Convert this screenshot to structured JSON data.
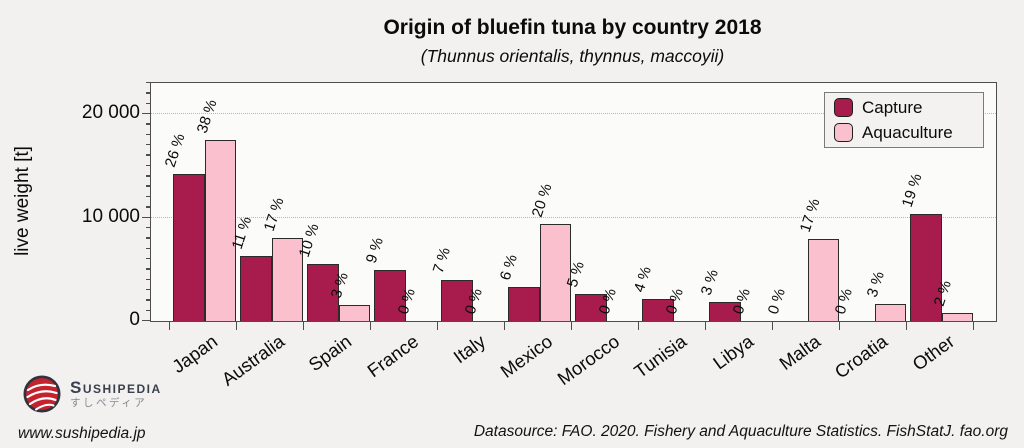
{
  "header": {
    "title": "Origin of bluefin tuna by country 2018",
    "subtitle": "(Thunnus orientalis, thynnus, maccoyii)"
  },
  "chart_data": {
    "type": "bar",
    "title": "Origin of bluefin tuna by country 2018",
    "subtitle": "(Thunnus orientalis, thynnus, maccoyii)",
    "xlabel": "",
    "ylabel": "live weight [t]",
    "ylim": [
      0,
      23000
    ],
    "yticks": [
      0,
      10000,
      20000
    ],
    "ytick_labels": [
      "0",
      "10 000",
      "20 000"
    ],
    "minor_tick_step": 1000,
    "grid": "dotted horizontal lines at 10 000 and 20 000",
    "legend_position": "top-right",
    "categories": [
      "Japan",
      "Australia",
      "Spain",
      "France",
      "Italy",
      "Mexico",
      "Morocco",
      "Tunisia",
      "Libya",
      "Malta",
      "Croatia",
      "Other"
    ],
    "series": [
      {
        "name": "Capture",
        "color": "#A81C4D",
        "values": [
          14250,
          6300,
          5500,
          4900,
          3950,
          3300,
          2600,
          2150,
          1850,
          0,
          0,
          10350
        ],
        "percent_labels": [
          "26 %",
          "11 %",
          "10 %",
          "9 %",
          "7 %",
          "6 %",
          "5 %",
          "4 %",
          "3 %",
          "0 %",
          "0 %",
          "19 %"
        ]
      },
      {
        "name": "Aquaculture",
        "color": "#FAC0CD",
        "values": [
          17500,
          8000,
          1500,
          0,
          0,
          9350,
          0,
          0,
          0,
          7900,
          1600,
          800
        ],
        "percent_labels": [
          "38 %",
          "17 %",
          "3 %",
          "0 %",
          "0 %",
          "20 %",
          "0 %",
          "0 %",
          "0 %",
          "17 %",
          "3 %",
          "2 %"
        ]
      }
    ]
  },
  "legend": {
    "items": [
      {
        "label": "Capture",
        "color": "#A81C4D"
      },
      {
        "label": "Aquaculture",
        "color": "#FAC0CD"
      }
    ]
  },
  "footer": {
    "logo": {
      "brand": "Sushipedia",
      "brand_jp": "すしペディア",
      "logo_red": "#C4232E",
      "logo_ring": "#2E333D"
    },
    "website": "www.sushipedia.jp",
    "datasource": "Datasource: FAO. 2020. Fishery and Aquaculture Statistics. FishStatJ. fao.org"
  }
}
